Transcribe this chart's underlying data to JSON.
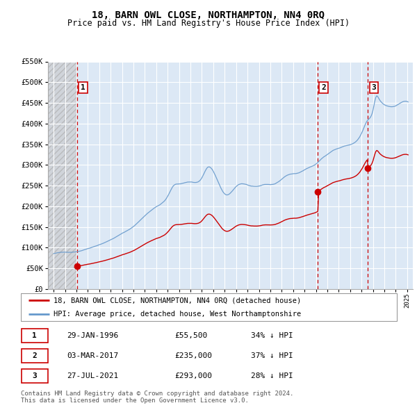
{
  "title": "18, BARN OWL CLOSE, NORTHAMPTON, NN4 0RQ",
  "subtitle": "Price paid vs. HM Land Registry's House Price Index (HPI)",
  "legend_line1": "18, BARN OWL CLOSE, NORTHAMPTON, NN4 0RQ (detached house)",
  "legend_line2": "HPI: Average price, detached house, West Northamptonshire",
  "footnote1": "Contains HM Land Registry data © Crown copyright and database right 2024.",
  "footnote2": "This data is licensed under the Open Government Licence v3.0.",
  "transactions": [
    {
      "num": 1,
      "date": "29-JAN-1996",
      "price": 55500,
      "x": 1996.08,
      "hpi_pct": "34% ↓ HPI"
    },
    {
      "num": 2,
      "date": "03-MAR-2017",
      "price": 235000,
      "x": 2017.17,
      "hpi_pct": "37% ↓ HPI"
    },
    {
      "num": 3,
      "date": "27-JUL-2021",
      "price": 293000,
      "x": 2021.56,
      "hpi_pct": "28% ↓ HPI"
    }
  ],
  "hpi_color": "#6699cc",
  "price_color": "#cc0000",
  "dashed_line_color": "#cc0000",
  "background_plot": "#dce8f5",
  "ylim": [
    0,
    550000
  ],
  "xlim": [
    1993.5,
    2025.5
  ],
  "yticks": [
    0,
    50000,
    100000,
    150000,
    200000,
    250000,
    300000,
    350000,
    400000,
    450000,
    500000,
    550000
  ],
  "ylabels": [
    "£0",
    "£50K",
    "£100K",
    "£150K",
    "£200K",
    "£250K",
    "£300K",
    "£350K",
    "£400K",
    "£450K",
    "£500K",
    "£550K"
  ]
}
